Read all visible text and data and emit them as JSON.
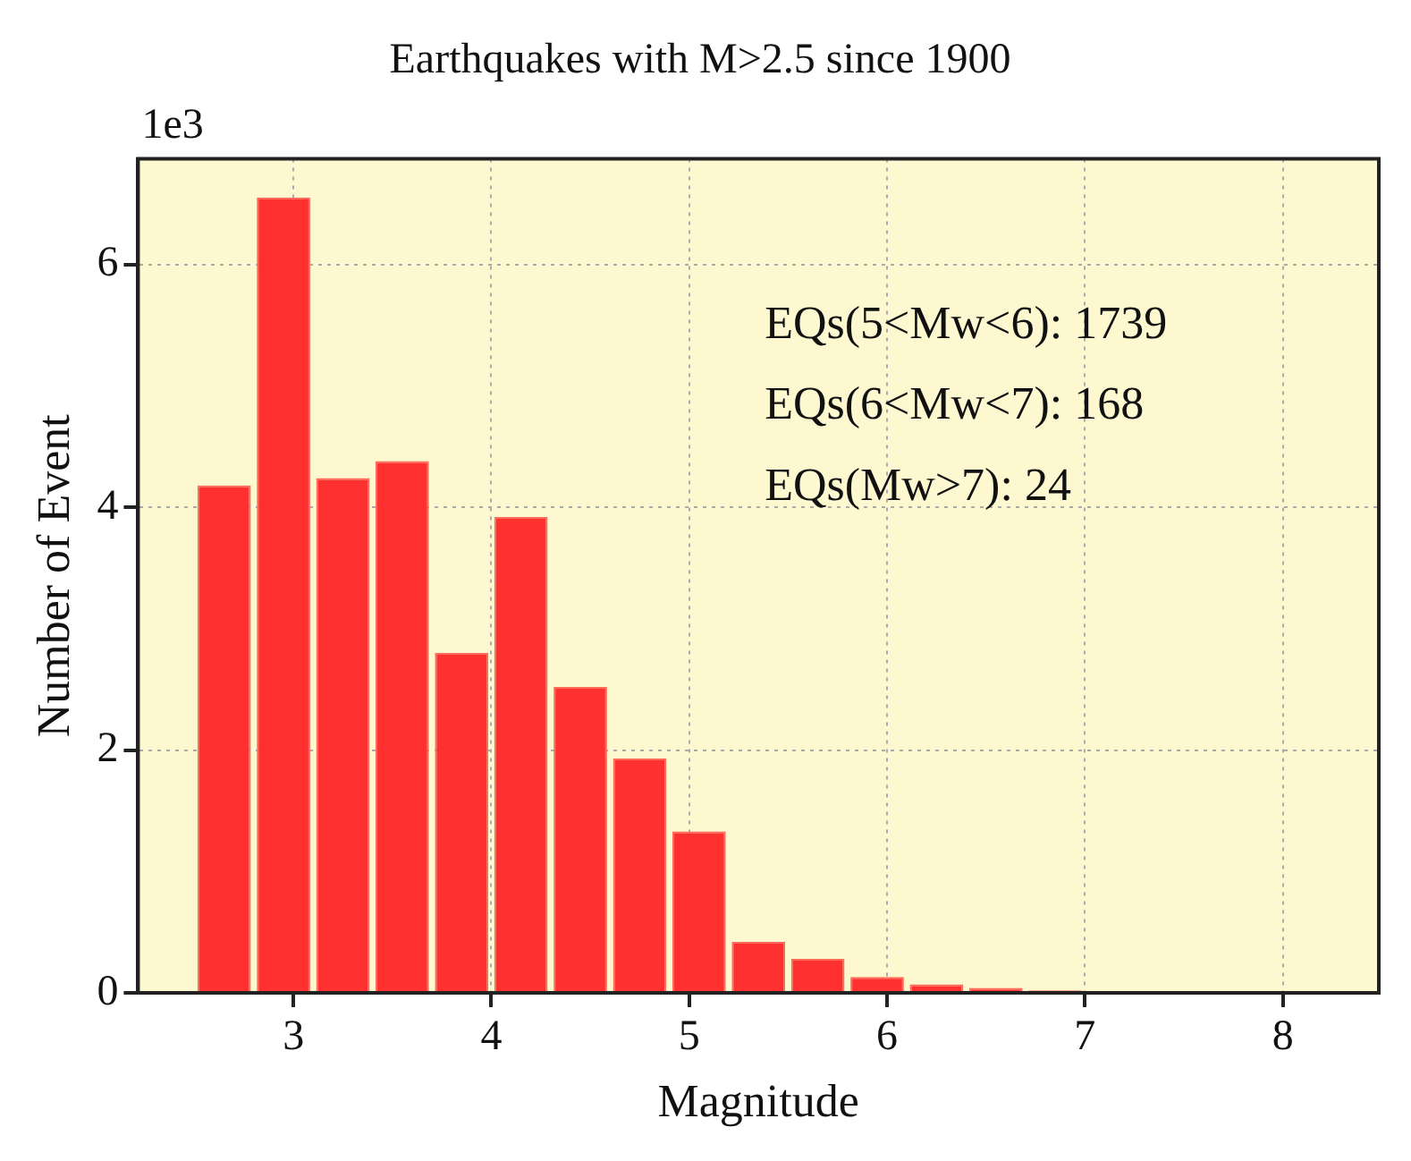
{
  "chart_data": {
    "type": "histogram",
    "title": "Earthquakes with M>2.5 since 1900",
    "xlabel": "Magnitude",
    "ylabel": "Number of Event",
    "bins": [
      2.5,
      2.8,
      3.1,
      3.4,
      3.7,
      4.0,
      4.3,
      4.6,
      4.9,
      5.2,
      5.5,
      5.8,
      6.1,
      6.4,
      6.7,
      7.0,
      7.3,
      7.6,
      7.9,
      8.2
    ],
    "values": [
      4.18,
      6.55,
      4.24,
      4.38,
      2.8,
      3.92,
      2.52,
      1.93,
      1.33,
      0.42,
      0.28,
      0.13,
      0.07,
      0.04,
      0.02,
      0.01,
      0,
      0,
      0
    ],
    "color": "#ff3030",
    "xlim": [
      2.215,
      8.485
    ],
    "xticks": [
      3,
      4,
      5,
      6,
      7,
      8
    ],
    "ylim": [
      0,
      6.87
    ],
    "yticks": [
      0,
      2,
      4,
      6
    ],
    "grid": true,
    "annotations": [
      "1e3",
      "EQs(5<Mw<6): 1739",
      "EQs(6<Mw<7): 168",
      "EQs(Mw>7): 24"
    ]
  }
}
